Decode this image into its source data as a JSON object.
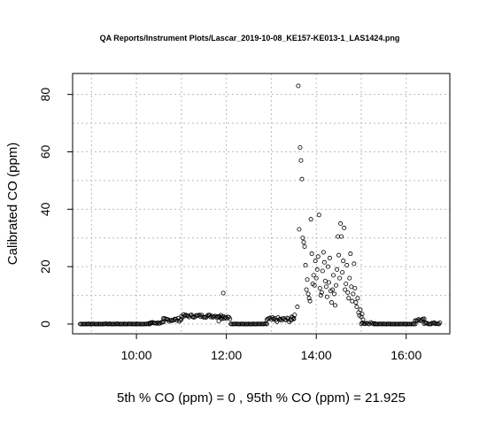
{
  "chart_data": {
    "type": "scatter",
    "title": "QA Reports/Instrument Plots/Lascar_2019-10-08_KE157-KE013-1_LAS1424.png",
    "xlabel": "5th % CO (ppm) =  0 , 95th % CO (ppm)  =  21.925",
    "ylabel": "Calibrated CO (ppm)",
    "x_ticks": [
      "10:00",
      "12:00",
      "14:00",
      "16:00"
    ],
    "x_tick_hours": [
      10,
      12,
      14,
      16
    ],
    "y_ticks": [
      0,
      20,
      40,
      60,
      80
    ],
    "xlim_hours": [
      8.58,
      16.97
    ],
    "ylim": [
      -3.4,
      87.3
    ],
    "x_grid_hours": [
      9,
      10,
      11,
      12,
      13,
      14,
      15,
      16
    ],
    "y_grid_values": [
      0,
      10,
      20,
      30,
      40,
      50,
      60,
      70,
      80
    ],
    "grid": true,
    "point_color": "#000000",
    "grid_color": "#bbbbbb",
    "series": [
      {
        "segments": [
          {
            "from": 8.75,
            "to": 10.3,
            "step": 0.025,
            "level": 0,
            "jitter": 0.1
          },
          {
            "from": 10.3,
            "to": 10.6,
            "step": 0.025,
            "level": 0.4,
            "jitter": 0.3
          },
          {
            "from": 10.6,
            "to": 11.0,
            "step": 0.025,
            "level": 1.5,
            "jitter": 0.6
          },
          {
            "from": 11.0,
            "to": 11.9,
            "step": 0.025,
            "level": 2.8,
            "jitter": 0.5
          },
          {
            "from": 11.88,
            "to": 12.1,
            "step": 0.025,
            "level": 2.5,
            "jitter": 0.7
          },
          {
            "from": 12.1,
            "to": 12.9,
            "step": 0.025,
            "level": 0,
            "jitter": 0.1
          },
          {
            "from": 12.9,
            "to": 13.5,
            "step": 0.025,
            "level": 1.5,
            "jitter": 0.8
          },
          {
            "from": 15.0,
            "to": 15.3,
            "step": 0.03,
            "level": 0.3,
            "jitter": 0.3
          },
          {
            "from": 15.3,
            "to": 16.2,
            "step": 0.025,
            "level": 0,
            "jitter": 0.1
          },
          {
            "from": 16.2,
            "to": 16.4,
            "step": 0.025,
            "level": 1.4,
            "jitter": 0.5
          },
          {
            "from": 16.4,
            "to": 16.75,
            "step": 0.025,
            "level": 0.2,
            "jitter": 0.3
          }
        ],
        "points": [
          [
            11.83,
            1.0
          ],
          [
            11.93,
            10.8
          ],
          [
            13.45,
            2.5
          ],
          [
            13.5,
            2.0
          ],
          [
            13.52,
            3.2
          ],
          [
            13.58,
            6.0
          ],
          [
            13.6,
            83.0
          ],
          [
            13.62,
            33.0
          ],
          [
            13.64,
            61.5
          ],
          [
            13.66,
            57.0
          ],
          [
            13.68,
            50.5
          ],
          [
            13.7,
            30.0
          ],
          [
            13.72,
            28.5
          ],
          [
            13.74,
            27.0
          ],
          [
            13.76,
            20.5
          ],
          [
            13.78,
            12.0
          ],
          [
            13.8,
            15.5
          ],
          [
            13.82,
            10.5
          ],
          [
            13.84,
            9.0
          ],
          [
            13.86,
            8.0
          ],
          [
            13.88,
            36.5
          ],
          [
            13.9,
            24.5
          ],
          [
            13.92,
            14.0
          ],
          [
            13.94,
            17.0
          ],
          [
            13.96,
            13.5
          ],
          [
            13.98,
            22.0
          ],
          [
            14.0,
            16.0
          ],
          [
            14.02,
            19.0
          ],
          [
            14.04,
            23.5
          ],
          [
            14.06,
            38.0
          ],
          [
            14.08,
            12.5
          ],
          [
            14.1,
            10.0
          ],
          [
            14.12,
            11.0
          ],
          [
            14.14,
            18.5
          ],
          [
            14.16,
            25.0
          ],
          [
            14.18,
            21.5
          ],
          [
            14.2,
            15.0
          ],
          [
            14.22,
            13.0
          ],
          [
            14.24,
            9.5
          ],
          [
            14.26,
            20.0
          ],
          [
            14.28,
            14.5
          ],
          [
            14.3,
            23.0
          ],
          [
            14.32,
            11.5
          ],
          [
            14.34,
            7.5
          ],
          [
            14.36,
            12.0
          ],
          [
            14.38,
            17.0
          ],
          [
            14.4,
            10.5
          ],
          [
            14.42,
            6.5
          ],
          [
            14.44,
            13.5
          ],
          [
            14.46,
            19.0
          ],
          [
            14.48,
            30.5
          ],
          [
            14.5,
            24.0
          ],
          [
            14.52,
            16.0
          ],
          [
            14.54,
            35.0
          ],
          [
            14.56,
            30.5
          ],
          [
            14.58,
            18.0
          ],
          [
            14.6,
            22.0
          ],
          [
            14.62,
            33.5
          ],
          [
            14.64,
            12.0
          ],
          [
            14.66,
            14.0
          ],
          [
            14.68,
            20.5
          ],
          [
            14.7,
            11.0
          ],
          [
            14.72,
            9.0
          ],
          [
            14.74,
            16.0
          ],
          [
            14.76,
            24.5
          ],
          [
            14.78,
            13.0
          ],
          [
            14.8,
            8.0
          ],
          [
            14.82,
            10.5
          ],
          [
            14.84,
            21.0
          ],
          [
            14.86,
            12.5
          ],
          [
            14.88,
            7.5
          ],
          [
            14.9,
            6.0
          ],
          [
            14.92,
            9.0
          ],
          [
            14.94,
            4.0
          ],
          [
            14.96,
            3.0
          ],
          [
            14.98,
            5.0
          ],
          [
            15.0,
            2.5
          ],
          [
            15.02,
            3.5
          ],
          [
            15.04,
            1.5
          ]
        ]
      }
    ]
  }
}
